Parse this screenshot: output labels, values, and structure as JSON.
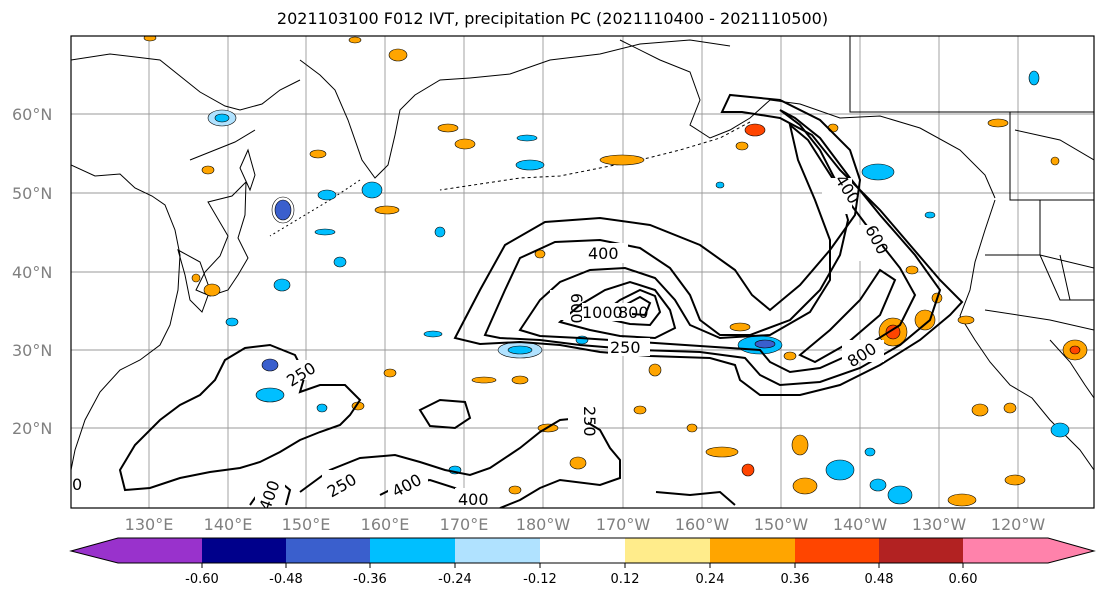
{
  "title": "2021103100 F012 IVT, precipitation PC (2021110400 - 2021110500)",
  "map": {
    "lat_labels": [
      "60°N",
      "50°N",
      "40°N",
      "30°N",
      "20°N"
    ],
    "lon_labels": [
      "130°E",
      "140°E",
      "150°E",
      "160°E",
      "170°E",
      "180°W",
      "170°W",
      "160°W",
      "150°W",
      "140°W",
      "130°W",
      "120°W"
    ],
    "ivt_contour_labels": [
      "400",
      "600",
      "1000",
      "800",
      "250",
      "400",
      "600",
      "800",
      "250",
      "250",
      "250",
      "400",
      "400",
      "400",
      "0"
    ],
    "contour_color": "#000000",
    "gridline_color": "#808080"
  },
  "colorbar": {
    "colors": [
      "#9932cc",
      "#00008b",
      "#3a5fcd",
      "#00bfff",
      "#b0e2ff",
      "#ffffff",
      "#ffec8b",
      "#ffa500",
      "#ff4500",
      "#b22222",
      "#ff82ab"
    ],
    "tick_labels": [
      "-0.60",
      "-0.48",
      "-0.36",
      "-0.24",
      "-0.12",
      "0.12",
      "0.24",
      "0.36",
      "0.48",
      "0.60"
    ]
  }
}
